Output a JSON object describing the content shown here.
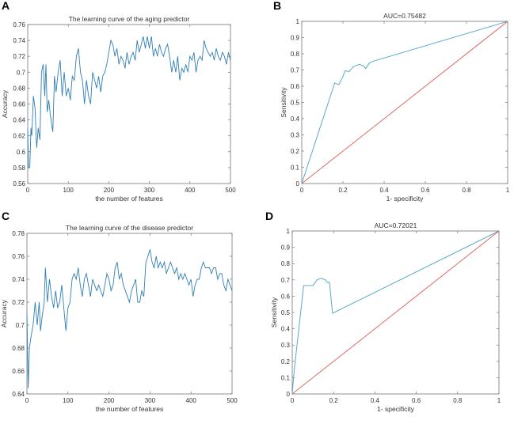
{
  "panels": [
    {
      "letter": "A"
    },
    {
      "letter": "B"
    },
    {
      "letter": "C"
    },
    {
      "letter": "D"
    }
  ],
  "colors": {
    "curve": "#2f7fb5",
    "roc": "#5aaac4",
    "diagonal": "#d96b68",
    "axis": "#555555"
  },
  "chart_data": [
    {
      "type": "line",
      "title": "The learning curve of the aging predictor",
      "xlabel": "the number of features",
      "ylabel": "Accuracy",
      "xlim": [
        0,
        500
      ],
      "ylim": [
        0.56,
        0.76
      ],
      "xticks": [
        0,
        100,
        200,
        300,
        400,
        500
      ],
      "yticks": [
        0.56,
        0.58,
        0.6,
        0.62,
        0.64,
        0.66,
        0.68,
        0.7,
        0.72,
        0.74,
        0.76
      ],
      "ytick_labels": [
        "0.56",
        "0.58",
        "0.6",
        "0.62",
        "0.64",
        "0.66",
        "0.68",
        "0.7",
        "0.72",
        "0.74",
        "0.76"
      ],
      "grid": false,
      "x": [
        0,
        2,
        5,
        8,
        10,
        14,
        18,
        22,
        26,
        30,
        34,
        38,
        42,
        45,
        48,
        52,
        56,
        62,
        66,
        70,
        75,
        80,
        85,
        90,
        95,
        100,
        105,
        110,
        115,
        120,
        125,
        130,
        135,
        140,
        145,
        150,
        155,
        160,
        165,
        170,
        175,
        180,
        185,
        190,
        195,
        200,
        205,
        210,
        215,
        220,
        225,
        230,
        235,
        240,
        245,
        250,
        255,
        260,
        265,
        270,
        275,
        280,
        285,
        290,
        295,
        300,
        305,
        310,
        315,
        320,
        325,
        330,
        335,
        340,
        345,
        350,
        355,
        360,
        365,
        370,
        375,
        380,
        385,
        390,
        395,
        400,
        405,
        410,
        415,
        420,
        425,
        430,
        435,
        440,
        445,
        450,
        455,
        460,
        465,
        470,
        475,
        480,
        485,
        490,
        495,
        500
      ],
      "y": [
        0.63,
        0.58,
        0.58,
        0.63,
        0.62,
        0.67,
        0.655,
        0.605,
        0.63,
        0.615,
        0.7,
        0.71,
        0.67,
        0.71,
        0.65,
        0.665,
        0.645,
        0.625,
        0.695,
        0.675,
        0.7,
        0.715,
        0.67,
        0.7,
        0.67,
        0.68,
        0.665,
        0.695,
        0.69,
        0.72,
        0.73,
        0.7,
        0.69,
        0.66,
        0.69,
        0.67,
        0.66,
        0.7,
        0.69,
        0.68,
        0.695,
        0.675,
        0.695,
        0.7,
        0.71,
        0.725,
        0.74,
        0.735,
        0.72,
        0.73,
        0.71,
        0.72,
        0.715,
        0.705,
        0.725,
        0.71,
        0.72,
        0.725,
        0.715,
        0.74,
        0.725,
        0.735,
        0.745,
        0.73,
        0.745,
        0.73,
        0.745,
        0.72,
        0.73,
        0.72,
        0.735,
        0.725,
        0.72,
        0.73,
        0.735,
        0.72,
        0.7,
        0.715,
        0.7,
        0.72,
        0.69,
        0.705,
        0.7,
        0.71,
        0.7,
        0.72,
        0.715,
        0.725,
        0.7,
        0.715,
        0.72,
        0.715,
        0.74,
        0.73,
        0.725,
        0.72,
        0.725,
        0.715,
        0.73,
        0.72,
        0.715,
        0.725,
        0.72,
        0.71,
        0.725,
        0.715
      ]
    },
    {
      "type": "line",
      "title": "AUC=0.75482",
      "xlabel": "1- specificity",
      "ylabel": "Sensitivity",
      "xlim": [
        0,
        1
      ],
      "ylim": [
        0,
        1
      ],
      "xticks": [
        0,
        0.2,
        0.4,
        0.6,
        0.8,
        1
      ],
      "xtick_labels": [
        "0",
        "0.2",
        "0.4",
        "0.6",
        "0.8",
        "1"
      ],
      "yticks": [
        0,
        0.1,
        0.2,
        0.3,
        0.4,
        0.5,
        0.6,
        0.7,
        0.8,
        0.9,
        1
      ],
      "ytick_labels": [
        "0",
        "0.1",
        "0.2",
        "0.3",
        "0.4",
        "0.5",
        "0.6",
        "0.7",
        "0.8",
        "0.9",
        "1"
      ],
      "grid": false,
      "series": [
        {
          "x": [
            0,
            0.16,
            0.18,
            0.2,
            0.21,
            0.23,
            0.25,
            0.28,
            0.3,
            0.31,
            0.33,
            0.35,
            1
          ],
          "y": [
            0,
            0.62,
            0.61,
            0.66,
            0.695,
            0.69,
            0.72,
            0.735,
            0.725,
            0.71,
            0.745,
            0.755,
            1
          ],
          "color": "roc"
        },
        {
          "x": [
            0,
            1
          ],
          "y": [
            0,
            1
          ],
          "color": "diagonal"
        }
      ]
    },
    {
      "type": "line",
      "title": "The learning curve of the disease predictor",
      "xlabel": "the number of features",
      "ylabel": "Accuracy",
      "xlim": [
        0,
        500
      ],
      "ylim": [
        0.64,
        0.78
      ],
      "xticks": [
        0,
        100,
        200,
        300,
        400,
        500
      ],
      "yticks": [
        0.64,
        0.66,
        0.68,
        0.7,
        0.72,
        0.74,
        0.76,
        0.78
      ],
      "ytick_labels": [
        "0.64",
        "0.66",
        "0.68",
        "0.7",
        "0.72",
        "0.74",
        "0.76",
        "0.78"
      ],
      "grid": false,
      "x": [
        0,
        3,
        6,
        10,
        15,
        20,
        25,
        30,
        33,
        38,
        42,
        45,
        50,
        55,
        60,
        65,
        70,
        75,
        80,
        85,
        90,
        95,
        100,
        105,
        110,
        115,
        120,
        125,
        130,
        135,
        140,
        145,
        150,
        155,
        160,
        165,
        170,
        175,
        180,
        185,
        190,
        195,
        200,
        205,
        210,
        215,
        220,
        225,
        230,
        235,
        240,
        245,
        250,
        255,
        260,
        265,
        270,
        275,
        280,
        285,
        290,
        295,
        300,
        305,
        310,
        315,
        320,
        325,
        330,
        335,
        340,
        345,
        350,
        355,
        360,
        365,
        370,
        375,
        380,
        385,
        390,
        395,
        400,
        405,
        410,
        415,
        420,
        425,
        430,
        435,
        440,
        445,
        450,
        455,
        460,
        465,
        470,
        475,
        480,
        485,
        490,
        495,
        500
      ],
      "y": [
        0.71,
        0.645,
        0.68,
        0.69,
        0.7,
        0.72,
        0.7,
        0.72,
        0.695,
        0.71,
        0.72,
        0.75,
        0.72,
        0.74,
        0.725,
        0.715,
        0.73,
        0.715,
        0.72,
        0.735,
        0.715,
        0.695,
        0.715,
        0.72,
        0.74,
        0.745,
        0.74,
        0.75,
        0.735,
        0.725,
        0.74,
        0.745,
        0.735,
        0.725,
        0.74,
        0.735,
        0.73,
        0.735,
        0.73,
        0.725,
        0.735,
        0.745,
        0.74,
        0.73,
        0.735,
        0.75,
        0.755,
        0.74,
        0.745,
        0.735,
        0.73,
        0.725,
        0.72,
        0.73,
        0.735,
        0.74,
        0.72,
        0.72,
        0.73,
        0.725,
        0.755,
        0.76,
        0.766,
        0.755,
        0.75,
        0.76,
        0.75,
        0.755,
        0.75,
        0.755,
        0.745,
        0.75,
        0.755,
        0.75,
        0.745,
        0.75,
        0.74,
        0.745,
        0.74,
        0.745,
        0.74,
        0.735,
        0.74,
        0.725,
        0.735,
        0.74,
        0.74,
        0.75,
        0.755,
        0.75,
        0.75,
        0.75,
        0.745,
        0.75,
        0.75,
        0.74,
        0.745,
        0.745,
        0.735,
        0.73,
        0.74,
        0.735,
        0.73
      ]
    },
    {
      "type": "line",
      "title": "AUC=0.72021",
      "xlabel": "1- specificity",
      "ylabel": "Sensitivity",
      "xlim": [
        0,
        1
      ],
      "ylim": [
        0,
        1
      ],
      "xticks": [
        0,
        0.2,
        0.4,
        0.6,
        0.8,
        1
      ],
      "xtick_labels": [
        "0",
        "0.2",
        "0.4",
        "0.6",
        "0.8",
        "1"
      ],
      "yticks": [
        0,
        0.1,
        0.2,
        0.3,
        0.4,
        0.5,
        0.6,
        0.7,
        0.8,
        0.9,
        1
      ],
      "ytick_labels": [
        "0",
        "0.1",
        "0.2",
        "0.3",
        "0.4",
        "0.5",
        "0.6",
        "0.7",
        "0.8",
        "0.9",
        "1"
      ],
      "grid": false,
      "series": [
        {
          "x": [
            0,
            0.01,
            0.055,
            0.1,
            0.12,
            0.14,
            0.16,
            0.17,
            0.18,
            0.195,
            1
          ],
          "y": [
            0,
            0.15,
            0.665,
            0.665,
            0.7,
            0.71,
            0.7,
            0.685,
            0.685,
            0.495,
            1
          ],
          "color": "roc"
        },
        {
          "x": [
            0,
            1
          ],
          "y": [
            0,
            1
          ],
          "color": "diagonal"
        }
      ]
    }
  ]
}
